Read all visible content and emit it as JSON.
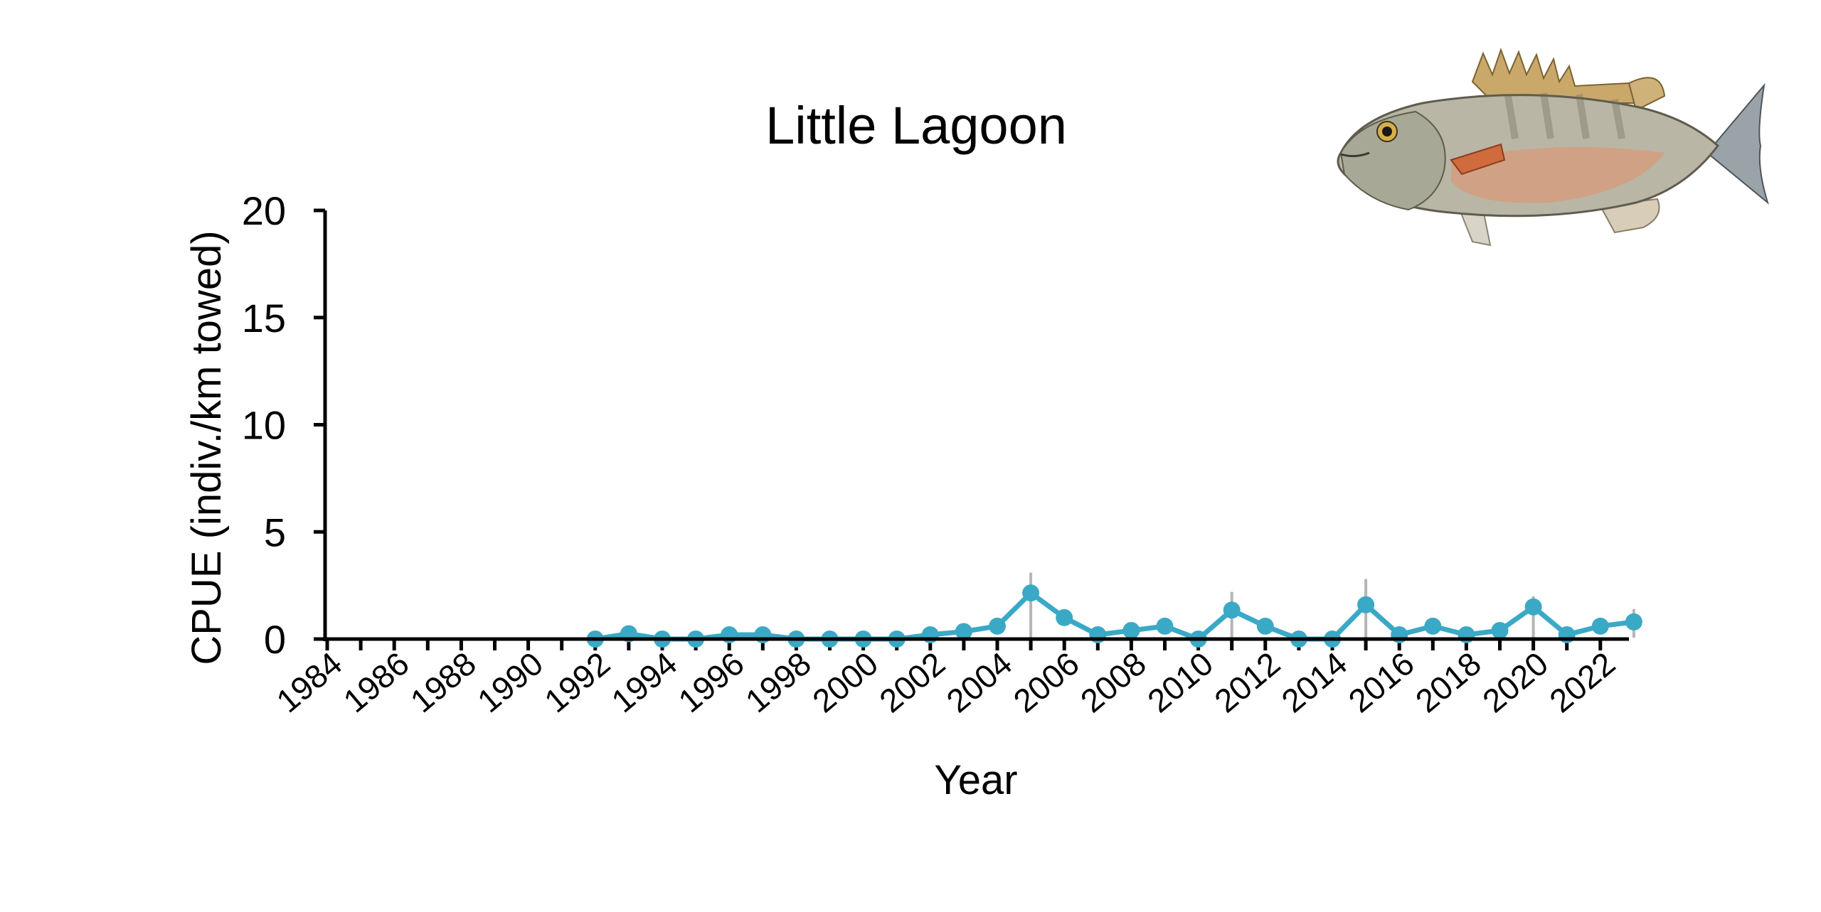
{
  "chart_data": {
    "type": "line",
    "title": "Little Lagoon",
    "xlabel": "Year",
    "ylabel": "CPUE (indiv./km towed)",
    "ylim": [
      0,
      20
    ],
    "yticks": [
      0,
      5,
      10,
      15,
      20
    ],
    "xlim": [
      1984,
      2023
    ],
    "xtick_labels": [
      "1984",
      "1986",
      "1988",
      "1990",
      "1992",
      "1994",
      "1996",
      "1998",
      "2000",
      "2002",
      "2004",
      "2006",
      "2008",
      "2010",
      "2012",
      "2014",
      "2016",
      "2018",
      "2020",
      "2022"
    ],
    "grid": false,
    "legend": false,
    "series": [
      {
        "color": "#3aa9c6",
        "x": [
          1992,
          1993,
          1994,
          1995,
          1996,
          1997,
          1998,
          1999,
          2000,
          2001,
          2002,
          2003,
          2004,
          2005,
          2006,
          2007,
          2008,
          2009,
          2010,
          2011,
          2012,
          2013,
          2014,
          2015,
          2016,
          2017,
          2018,
          2019,
          2020,
          2021,
          2022,
          2023
        ],
        "y": [
          0,
          0.25,
          0,
          0,
          0.2,
          0.2,
          0,
          0,
          0,
          0,
          0.2,
          0.35,
          0.6,
          2.15,
          1.0,
          0.2,
          0.4,
          0.6,
          0,
          1.35,
          0.6,
          0,
          0,
          1.6,
          0.2,
          0.6,
          0.2,
          0.4,
          1.5,
          0.2,
          0.6,
          0.8
        ],
        "error_upper": [
          0,
          0,
          0,
          0,
          0,
          0,
          0,
          0,
          0,
          0,
          0,
          0,
          0,
          3.1,
          0,
          0,
          0,
          0,
          0,
          2.2,
          0,
          0,
          0,
          2.8,
          0,
          0,
          0,
          0,
          2.0,
          0,
          0,
          1.4
        ]
      }
    ],
    "error_bar_color": "#b5b5b5",
    "illustration": "mangrove-snapper-illustration"
  }
}
